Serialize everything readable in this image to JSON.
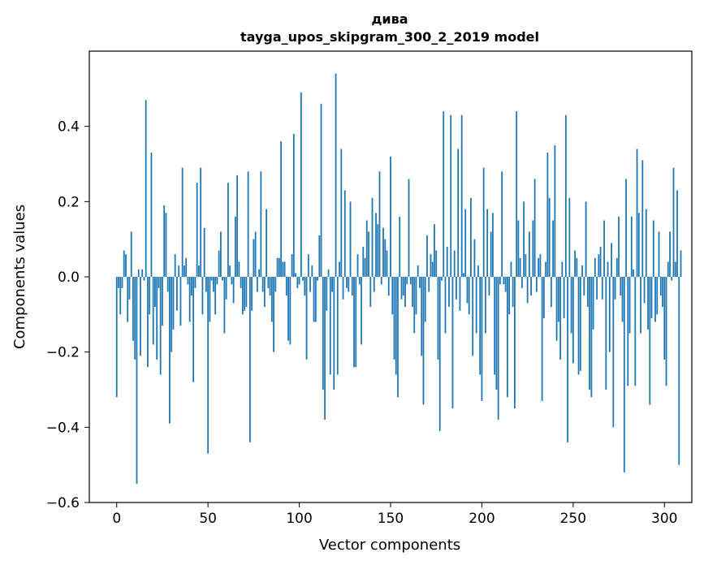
{
  "chart_data": {
    "type": "bar",
    "title": "дива",
    "subtitle": "tayga_upos_skipgram_300_2_2019 model",
    "xlabel": "Vector components",
    "ylabel": "Components values",
    "xlim": [
      -15,
      315
    ],
    "ylim": [
      -0.6,
      0.6
    ],
    "xticks": [
      0,
      50,
      100,
      150,
      200,
      250,
      300
    ],
    "yticks": [
      -0.6,
      -0.4,
      -0.2,
      0.0,
      0.2,
      0.4
    ],
    "ytick_labels": [
      "−0.6",
      "−0.4",
      "−0.2",
      "0.0",
      "0.2",
      "0.4"
    ],
    "grid": false,
    "bar_color": "#1f77b4",
    "values": [
      -0.32,
      -0.03,
      -0.1,
      -0.03,
      0.07,
      0.06,
      -0.12,
      -0.06,
      0.12,
      -0.17,
      -0.22,
      -0.55,
      0.02,
      -0.21,
      0.02,
      -0.01,
      0.47,
      -0.24,
      -0.1,
      0.33,
      -0.18,
      -0.08,
      -0.22,
      -0.03,
      -0.26,
      -0.13,
      0.19,
      0.17,
      -0.04,
      -0.39,
      -0.2,
      -0.14,
      0.06,
      -0.09,
      0.03,
      -0.13,
      0.29,
      0.03,
      0.05,
      -0.02,
      -0.12,
      -0.05,
      -0.28,
      -0.03,
      0.25,
      0.03,
      0.29,
      -0.1,
      0.13,
      -0.04,
      -0.47,
      -0.12,
      -0.01,
      -0.04,
      -0.1,
      -0.02,
      0.07,
      0.12,
      -0.01,
      -0.15,
      -0.06,
      0.25,
      0.03,
      -0.02,
      -0.07,
      0.16,
      0.27,
      0.04,
      -0.03,
      -0.1,
      -0.09,
      -0.08,
      0.28,
      -0.44,
      -0.09,
      0.1,
      0.12,
      -0.04,
      0.02,
      0.28,
      -0.04,
      -0.08,
      0.18,
      -0.03,
      -0.05,
      -0.12,
      -0.2,
      -0.04,
      0.05,
      0.05,
      0.36,
      0.04,
      0.04,
      -0.05,
      -0.17,
      -0.18,
      0.06,
      0.38,
      0.01,
      -0.03,
      -0.02,
      0.49,
      -0.01,
      -0.05,
      -0.22,
      0.06,
      -0.04,
      0.03,
      -0.12,
      -0.12,
      -0.01,
      0.11,
      0.46,
      -0.3,
      -0.38,
      -0.09,
      0.02,
      -0.26,
      -0.04,
      -0.3,
      0.54,
      -0.26,
      0.04,
      0.34,
      -0.06,
      0.23,
      -0.03,
      -0.04,
      0.2,
      -0.05,
      -0.24,
      -0.24,
      0.06,
      -0.02,
      -0.18,
      0.08,
      0.05,
      0.15,
      0.12,
      -0.08,
      0.21,
      -0.04,
      0.17,
      0.14,
      0.28,
      -0.02,
      0.13,
      0.1,
      0.07,
      -0.05,
      0.32,
      -0.1,
      -0.22,
      -0.26,
      -0.32,
      0.16,
      -0.06,
      -0.05,
      -0.08,
      -0.02,
      0.26,
      -0.02,
      -0.08,
      -0.15,
      -0.1,
      0.03,
      -0.03,
      -0.21,
      -0.34,
      -0.12,
      0.11,
      -0.04,
      0.06,
      0.04,
      0.14,
      0.07,
      -0.22,
      -0.41,
      -0.01,
      0.44,
      -0.15,
      0.08,
      -0.08,
      0.43,
      -0.35,
      0.07,
      -0.06,
      0.34,
      -0.09,
      0.43,
      0.01,
      0.18,
      -0.07,
      -0.1,
      0.21,
      -0.21,
      0.1,
      -0.15,
      0.03,
      -0.26,
      -0.33,
      0.29,
      -0.15,
      0.18,
      -0.05,
      0.12,
      0.17,
      -0.26,
      -0.3,
      -0.38,
      -0.02,
      0.28,
      -0.02,
      -0.04,
      -0.32,
      -0.1,
      0.04,
      -0.08,
      -0.35,
      0.44,
      0.15,
      0.05,
      -0.03,
      0.2,
      0.06,
      -0.07,
      0.12,
      -0.05,
      0.15,
      0.26,
      -0.04,
      0.05,
      0.06,
      -0.33,
      -0.11,
      0.04,
      0.33,
      0.21,
      -0.08,
      0.15,
      0.35,
      -0.17,
      -0.12,
      -0.22,
      0.04,
      -0.11,
      0.43,
      -0.44,
      0.21,
      -0.15,
      -0.23,
      0.07,
      0.05,
      -0.26,
      -0.25,
      0.03,
      -0.05,
      0.2,
      -0.08,
      -0.3,
      -0.32,
      -0.14,
      0.05,
      -0.06,
      0.06,
      0.08,
      -0.06,
      0.15,
      -0.3,
      0.04,
      -0.2,
      0.09,
      -0.4,
      -0.06,
      0.05,
      0.16,
      -0.05,
      -0.12,
      -0.52,
      0.26,
      -0.29,
      -0.15,
      0.16,
      0.02,
      -0.29,
      0.34,
      0.17,
      -0.15,
      0.31,
      -0.07,
      0.18,
      -0.14,
      -0.34,
      -0.11,
      0.15,
      -0.12,
      -0.1,
      0.12,
      -0.05,
      -0.08,
      -0.22,
      -0.29,
      0.04,
      0.12,
      -0.01,
      0.29,
      0.04,
      0.23,
      -0.5,
      0.07
    ]
  }
}
